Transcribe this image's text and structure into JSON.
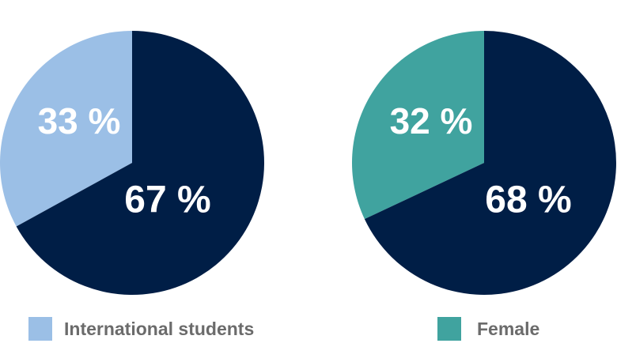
{
  "chart_data": [
    {
      "type": "pie",
      "slices": [
        {
          "label": "International students",
          "value": 33,
          "display": "33 %",
          "color": "#9bbfe6"
        },
        {
          "label": "",
          "value": 67,
          "display": "67 %",
          "color": "#001e46"
        }
      ],
      "legend": {
        "label": "International students",
        "color": "#9bbfe6",
        "placement": "bottom"
      }
    },
    {
      "type": "pie",
      "slices": [
        {
          "label": "Female",
          "value": 32,
          "display": "32 %",
          "color": "#40a39f"
        },
        {
          "label": "",
          "value": 68,
          "display": "68 %",
          "color": "#001e46"
        }
      ],
      "legend": {
        "label": "Female",
        "color": "#40a39f",
        "placement": "bottom"
      }
    }
  ]
}
